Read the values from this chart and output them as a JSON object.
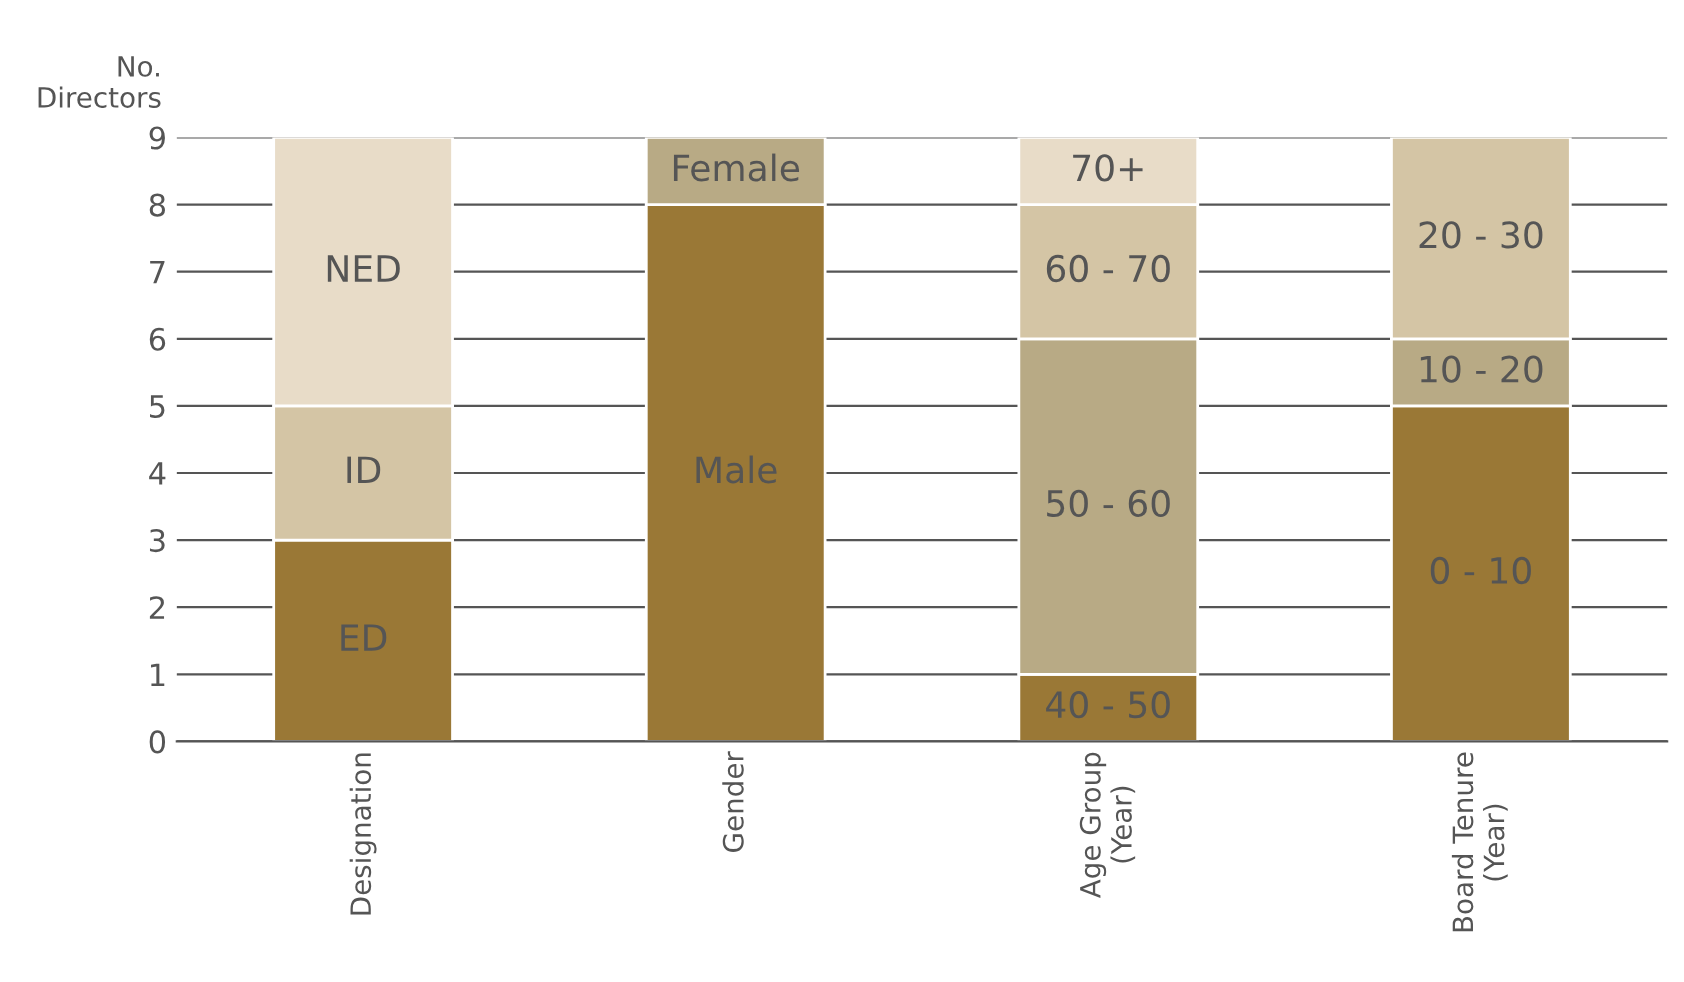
{
  "chart_data": {
    "type": "bar",
    "stacked": true,
    "ylabel": "No.\nDirectors",
    "categories": [
      "Designation",
      "Gender",
      "Age Group\n(Year)",
      "Board Tenure\n(Year)"
    ],
    "series": [
      {
        "name": "ED",
        "color": "#9a7836",
        "values": [
          3,
          null,
          null,
          null
        ]
      },
      {
        "name": "ID",
        "color": "#d4c5a5",
        "values": [
          2,
          null,
          null,
          null
        ]
      },
      {
        "name": "NED",
        "color": "#e8dcc8",
        "values": [
          4,
          null,
          null,
          null
        ]
      },
      {
        "name": "Male",
        "color": "#9a7836",
        "values": [
          null,
          8,
          null,
          null
        ]
      },
      {
        "name": "Female",
        "color": "#b8aa85",
        "values": [
          null,
          1,
          null,
          null
        ]
      },
      {
        "name": "40 - 50",
        "color": "#9a7836",
        "values": [
          null,
          null,
          1,
          null
        ]
      },
      {
        "name": "50 - 60",
        "color": "#b8aa85",
        "values": [
          null,
          null,
          5,
          null
        ]
      },
      {
        "name": "60 - 70",
        "color": "#d4c5a5",
        "values": [
          null,
          null,
          2,
          null
        ]
      },
      {
        "name": "70+",
        "color": "#e8dcc8",
        "values": [
          null,
          null,
          1,
          null
        ]
      },
      {
        "name": "0 - 10",
        "color": "#9a7836",
        "values": [
          null,
          null,
          null,
          5
        ]
      },
      {
        "name": "10 - 20",
        "color": "#b8aa85",
        "values": [
          null,
          null,
          null,
          1
        ]
      },
      {
        "name": "20 - 30",
        "color": "#d4c5a5",
        "values": [
          null,
          null,
          null,
          3
        ]
      }
    ],
    "ylim": [
      0,
      9
    ],
    "yticks": [
      0,
      1,
      2,
      3,
      4,
      5,
      6,
      7,
      8,
      9
    ],
    "grid": "y",
    "legend": false
  }
}
